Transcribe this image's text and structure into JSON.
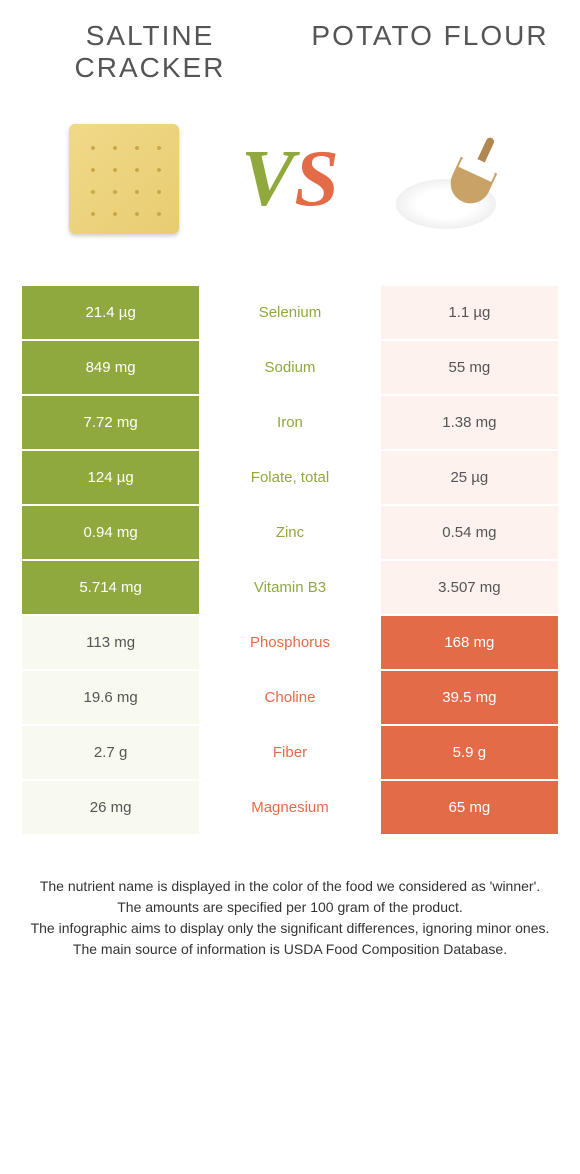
{
  "header": {
    "food1_title": "Saltine cracker",
    "food2_title": "Potato flour",
    "vs_v": "V",
    "vs_s": "S"
  },
  "colors": {
    "green": "#8fa93e",
    "orange": "#e46b47",
    "light_green": "#f8faf0",
    "light_orange": "#fdf2ee"
  },
  "rows": [
    {
      "nutrient": "Selenium",
      "left": "21.4 µg",
      "right": "1.1 µg",
      "winner": "left"
    },
    {
      "nutrient": "Sodium",
      "left": "849 mg",
      "right": "55 mg",
      "winner": "left"
    },
    {
      "nutrient": "Iron",
      "left": "7.72 mg",
      "right": "1.38 mg",
      "winner": "left"
    },
    {
      "nutrient": "Folate, total",
      "left": "124 µg",
      "right": "25 µg",
      "winner": "left"
    },
    {
      "nutrient": "Zinc",
      "left": "0.94 mg",
      "right": "0.54 mg",
      "winner": "left"
    },
    {
      "nutrient": "Vitamin B3",
      "left": "5.714 mg",
      "right": "3.507 mg",
      "winner": "left"
    },
    {
      "nutrient": "Phosphorus",
      "left": "113 mg",
      "right": "168 mg",
      "winner": "right"
    },
    {
      "nutrient": "Choline",
      "left": "19.6 mg",
      "right": "39.5 mg",
      "winner": "right"
    },
    {
      "nutrient": "Fiber",
      "left": "2.7 g",
      "right": "5.9 g",
      "winner": "right"
    },
    {
      "nutrient": "Magnesium",
      "left": "26 mg",
      "right": "65 mg",
      "winner": "right"
    }
  ],
  "footer": {
    "line1": "The nutrient name is displayed in the color of the food we considered as 'winner'.",
    "line2": "The amounts are specified per 100 gram of the product.",
    "line3": "The infographic aims to display only the significant differences, ignoring minor ones.",
    "line4": "The main source of information is USDA Food Composition Database."
  }
}
